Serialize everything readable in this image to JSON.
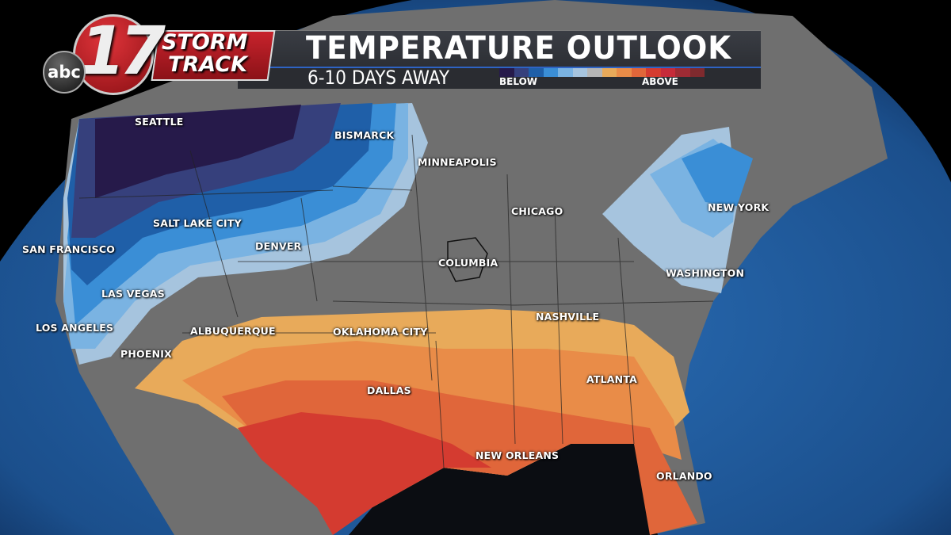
{
  "header": {
    "title": "TEMPERATURE OUTLOOK",
    "subtitle": "6-10 DAYS AWAY",
    "legend_below": "BELOW",
    "legend_above": "ABOVE",
    "legend_colors": [
      "#261a4a",
      "#36407c",
      "#1f5fa8",
      "#3a8ed6",
      "#7ab3e2",
      "#a6c4de",
      "#b5b5b5",
      "#e8aa5a",
      "#e98c48",
      "#e0663a",
      "#d43b30",
      "#c62b3a",
      "#9e2b34",
      "#7f2a2e"
    ]
  },
  "logo": {
    "network": "abc",
    "channel": "17",
    "brand_line1": "STORM",
    "brand_line2": "TRACK"
  },
  "cities": [
    "SEATTLE",
    "BISMARCK",
    "MINNEAPOLIS",
    "SALT LAKE CITY",
    "SAN FRANCISCO",
    "DENVER",
    "CHICAGO",
    "NEW YORK",
    "COLUMBIA",
    "LAS VEGAS",
    "WASHINGTON",
    "LOS ANGELES",
    "ALBUQUERQUE",
    "OKLAHOMA CITY",
    "NASHVILLE",
    "PHOENIX",
    "DALLAS",
    "ATLANTA",
    "NEW ORLEANS",
    "ORLANDO"
  ],
  "colors": {
    "ocean": "#1d5da0",
    "land": "#6e6e6e",
    "gulf": "#0b0d12"
  }
}
